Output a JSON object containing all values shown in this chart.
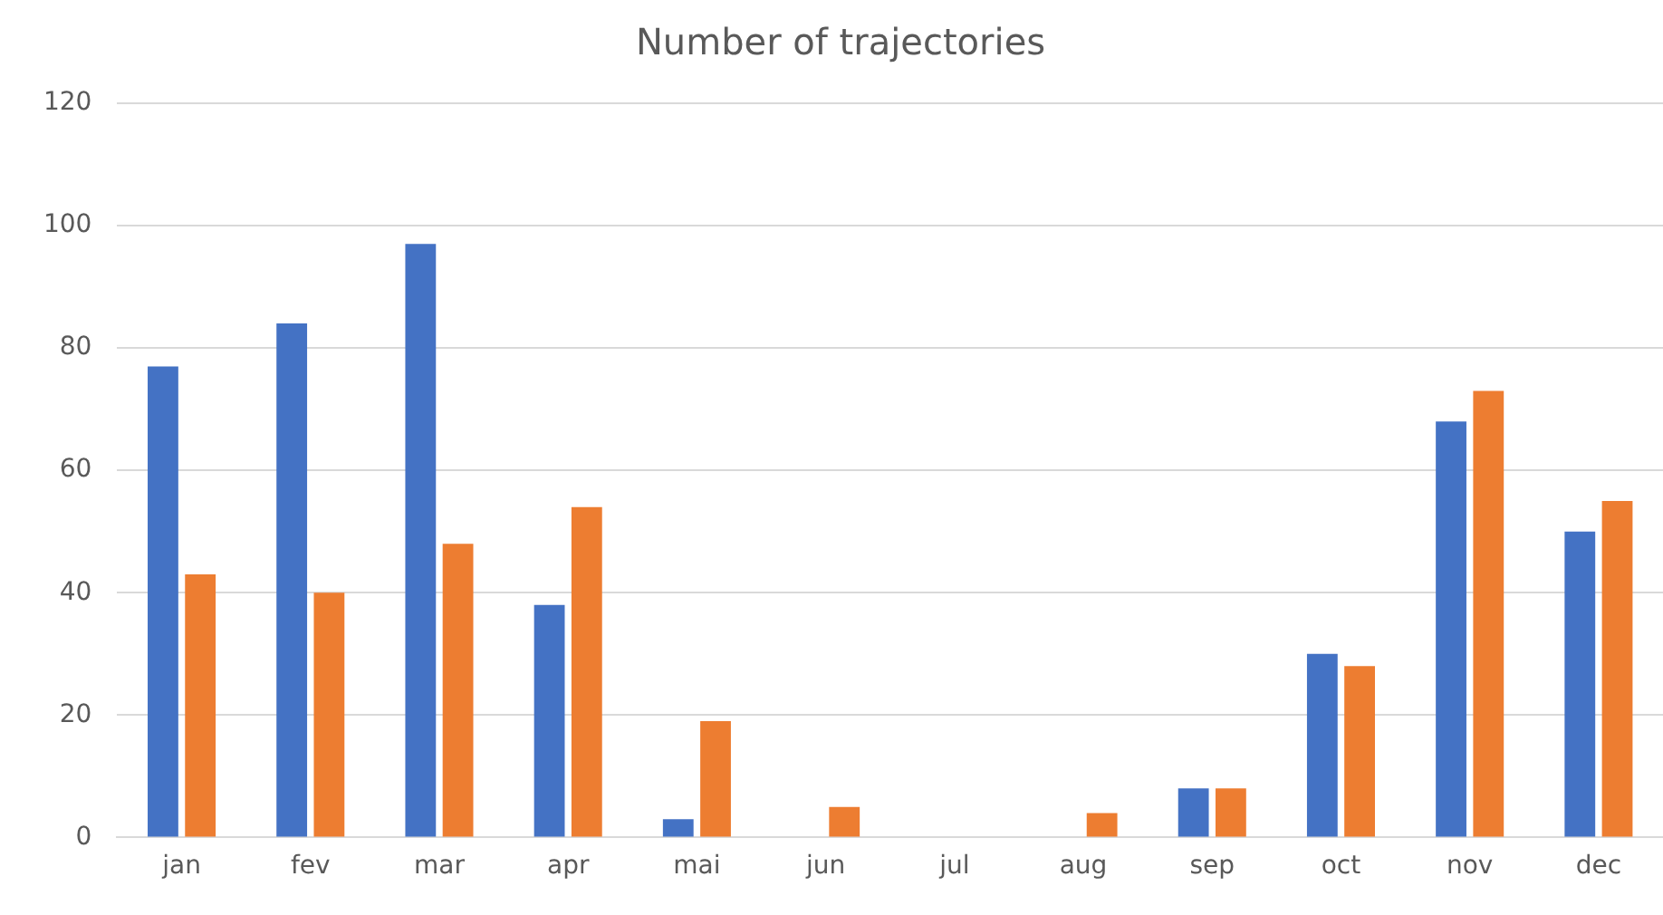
{
  "chart_data": {
    "type": "bar",
    "title": "Number of trajectories",
    "categories": [
      "jan",
      "fev",
      "mar",
      "apr",
      "mai",
      "jun",
      "jul",
      "aug",
      "sep",
      "oct",
      "nov",
      "dec"
    ],
    "series": [
      {
        "color": "#4472c4",
        "values": [
          77,
          84,
          97,
          38,
          3,
          0,
          0,
          0,
          8,
          30,
          68,
          50
        ]
      },
      {
        "color": "#ed7d31",
        "values": [
          43,
          40,
          48,
          54,
          19,
          5,
          0,
          4,
          8,
          28,
          73,
          55
        ]
      }
    ],
    "ylim": [
      0,
      120
    ],
    "yticks": [
      0,
      20,
      40,
      60,
      80,
      100,
      120
    ],
    "grid": "y",
    "legend": false
  }
}
